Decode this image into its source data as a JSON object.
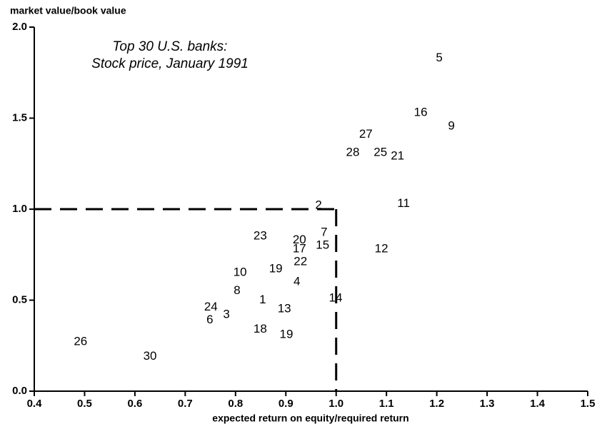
{
  "chart_data": {
    "type": "scatter",
    "title": [
      "Top 30 U.S. banks:",
      "Stock price, January 1991"
    ],
    "x_label": "expected return on equity/required return",
    "y_label": "market value/book value",
    "xlim": [
      0.4,
      1.5
    ],
    "ylim": [
      0,
      2
    ],
    "xticks": [
      0.4,
      0.5,
      0.6,
      0.7,
      0.8,
      0.9,
      {
        "value": 1,
        "label": "1.0"
      },
      1.1,
      1.2,
      1.3,
      1.4,
      1.5
    ],
    "yticks": [
      {
        "value": 0,
        "label": "0.0"
      },
      0.5,
      {
        "value": 1,
        "label": "1.0"
      },
      1.5,
      {
        "value": 2,
        "label": "2.0"
      }
    ],
    "reference": {
      "x": 1,
      "y": 1
    },
    "color": "#000000",
    "points": [
      {
        "label": "5",
        "x": 1.205,
        "y": 1.83
      },
      {
        "label": "16",
        "x": 1.168,
        "y": 1.53
      },
      {
        "label": "9",
        "x": 1.229,
        "y": 1.455
      },
      {
        "label": "27",
        "x": 1.059,
        "y": 1.41
      },
      {
        "label": "28",
        "x": 1.033,
        "y": 1.31
      },
      {
        "label": "25",
        "x": 1.088,
        "y": 1.31
      },
      {
        "label": "21",
        "x": 1.122,
        "y": 1.29
      },
      {
        "label": "11",
        "x": 1.134,
        "y": 1.03
      },
      {
        "label": "2",
        "x": 0.965,
        "y": 1.02
      },
      {
        "label": "7",
        "x": 0.976,
        "y": 0.87
      },
      {
        "label": "23",
        "x": 0.849,
        "y": 0.85
      },
      {
        "label": "20",
        "x": 0.927,
        "y": 0.83
      },
      {
        "label": "15",
        "x": 0.973,
        "y": 0.8
      },
      {
        "label": "17",
        "x": 0.927,
        "y": 0.78
      },
      {
        "label": "12",
        "x": 1.09,
        "y": 0.78
      },
      {
        "label": "22",
        "x": 0.929,
        "y": 0.71
      },
      {
        "label": "19",
        "x": 0.88,
        "y": 0.67
      },
      {
        "label": "10",
        "x": 0.809,
        "y": 0.65
      },
      {
        "label": "4",
        "x": 0.922,
        "y": 0.6
      },
      {
        "label": "8",
        "x": 0.803,
        "y": 0.55
      },
      {
        "label": "1",
        "x": 0.854,
        "y": 0.5
      },
      {
        "label": "14",
        "x": 0.999,
        "y": 0.51
      },
      {
        "label": "13",
        "x": 0.897,
        "y": 0.45
      },
      {
        "label": "24",
        "x": 0.751,
        "y": 0.46
      },
      {
        "label": "3",
        "x": 0.782,
        "y": 0.42
      },
      {
        "label": "6",
        "x": 0.749,
        "y": 0.39
      },
      {
        "label": "18",
        "x": 0.849,
        "y": 0.34
      },
      {
        "label": "19",
        "x": 0.901,
        "y": 0.31
      },
      {
        "label": "26",
        "x": 0.492,
        "y": 0.27
      },
      {
        "label": "30",
        "x": 0.63,
        "y": 0.19
      }
    ]
  }
}
